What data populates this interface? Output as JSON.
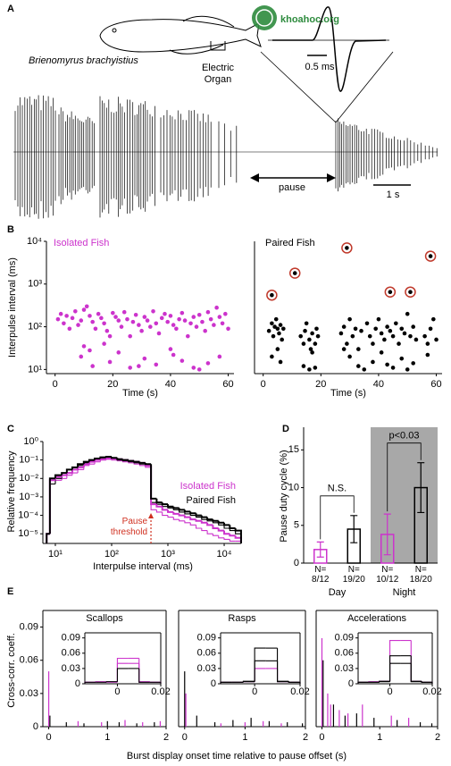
{
  "panels": [
    "A",
    "B",
    "C",
    "D",
    "E"
  ],
  "watermark": "khoahoc.org",
  "illustration": {
    "species": "Brienomyrus brachyistius",
    "organ_label": "Electric\nOrgan",
    "waveform_scale": "0.5 ms",
    "pause_label": "pause",
    "time_scale": "1 s"
  },
  "chart_data": [
    {
      "type": "scatter",
      "title": "Isolated Fish",
      "title_color": "#cc33cc",
      "xlabel": "Time (s)",
      "ylabel": "Interpulse interval (ms)",
      "xlim": [
        -3,
        62
      ],
      "ylim": [
        8,
        10000
      ],
      "yscale": "log",
      "xticks": [
        0,
        20,
        40,
        60
      ],
      "yticks": [
        {
          "value": 10,
          "label": "10¹"
        },
        {
          "value": 100,
          "label": "10²"
        },
        {
          "value": 1000,
          "label": "10³"
        },
        {
          "value": 10000,
          "label": "10⁴"
        }
      ],
      "series": [
        {
          "color": "#cc33cc",
          "x": [
            1,
            2,
            3,
            4,
            5,
            6,
            7,
            8,
            9,
            10,
            11,
            12,
            13,
            14,
            15,
            16,
            17,
            18,
            19,
            20,
            21,
            22,
            23,
            24,
            25,
            26,
            27,
            28,
            29,
            30,
            31,
            32,
            33,
            34,
            35,
            36,
            37,
            38,
            39,
            40,
            41,
            42,
            43,
            44,
            45,
            46,
            47,
            48,
            49,
            50,
            51,
            52,
            53,
            54,
            55,
            56,
            57,
            58,
            59,
            60,
            9,
            13,
            19,
            22,
            26,
            31,
            35,
            41,
            44,
            48,
            53,
            57,
            10,
            12,
            40,
            17,
            29,
            50
          ],
          "values": [
            150,
            200,
            120,
            180,
            90,
            160,
            230,
            110,
            140,
            250,
            300,
            180,
            130,
            90,
            200,
            160,
            120,
            80,
            60,
            210,
            170,
            140,
            100,
            220,
            150,
            60,
            130,
            190,
            110,
            80,
            170,
            140,
            100,
            230,
            120,
            70,
            160,
            200,
            130,
            180,
            110,
            90,
            150,
            210,
            140,
            60,
            120,
            170,
            100,
            190,
            130,
            80,
            220,
            150,
            110,
            280,
            170,
            120,
            200,
            90,
            20,
            12,
            15,
            25,
            11,
            18,
            13,
            22,
            16,
            11,
            14,
            20,
            35,
            28,
            30,
            40,
            12,
            10
          ]
        }
      ]
    },
    {
      "type": "scatter",
      "title": "Paired Fish",
      "title_color": "#000000",
      "xlabel": "Time (s)",
      "xlim": [
        -3,
        62
      ],
      "ylim": [
        8,
        10000
      ],
      "yscale": "log",
      "xticks": [
        0,
        20,
        40,
        60
      ],
      "series": [
        {
          "color": "#000000",
          "x": [
            2,
            3,
            3.5,
            4,
            4.5,
            5,
            5.5,
            6,
            6.5,
            7,
            3,
            5,
            6,
            13,
            14,
            14.5,
            15,
            16,
            16.5,
            17,
            18,
            18.5,
            19,
            14,
            16,
            17,
            18,
            27,
            28,
            29,
            30,
            31,
            32,
            33,
            34,
            36,
            37,
            38,
            39,
            40,
            41,
            42,
            43,
            44,
            45,
            46,
            47,
            48,
            49,
            50,
            51,
            52,
            53,
            56,
            57,
            58,
            59,
            60,
            30,
            33,
            38,
            41,
            45,
            48,
            52,
            57,
            28,
            35,
            43,
            50
          ],
          "values": [
            80,
            120,
            60,
            100,
            150,
            90,
            70,
            110,
            50,
            90,
            20,
            30,
            15,
            60,
            40,
            80,
            120,
            50,
            30,
            70,
            40,
            90,
            60,
            12,
            10,
            25,
            11,
            70,
            100,
            40,
            150,
            60,
            90,
            30,
            80,
            120,
            60,
            40,
            90,
            150,
            70,
            50,
            100,
            80,
            60,
            120,
            40,
            90,
            70,
            200,
            60,
            100,
            50,
            60,
            40,
            90,
            150,
            50,
            20,
            12,
            15,
            25,
            11,
            18,
            14,
            22,
            30,
            10,
            13,
            10
          ]
        },
        {
          "color": "#000000",
          "ring_color": "#c0392b",
          "x": [
            3,
            11,
            29,
            44,
            51,
            58
          ],
          "values": [
            550,
            1800,
            7000,
            650,
            650,
            4500
          ]
        }
      ]
    },
    {
      "type": "histogram",
      "xlabel": "Interpulse interval (ms)",
      "ylabel": "Relative frequency",
      "legend": "right",
      "xlim": [
        6,
        20000
      ],
      "ylim": [
        3e-06,
        1
      ],
      "xscale": "log",
      "yscale": "log",
      "xticks": [
        {
          "value": 10,
          "label": "10¹"
        },
        {
          "value": 100,
          "label": "10²"
        },
        {
          "value": 1000,
          "label": "10³"
        },
        {
          "value": 10000,
          "label": "10⁴"
        }
      ],
      "yticks": [
        {
          "value": 1e-05,
          "label": "10⁻⁵"
        },
        {
          "value": 0.0001,
          "label": "10⁻⁴"
        },
        {
          "value": 0.001,
          "label": "10⁻³"
        },
        {
          "value": 0.01,
          "label": "10⁻²"
        },
        {
          "value": 0.1,
          "label": "10⁻¹"
        },
        {
          "value": 1,
          "label": "10⁰"
        }
      ],
      "bins": [
        7,
        8,
        10,
        13,
        16,
        20,
        25,
        32,
        40,
        50,
        63,
        80,
        100,
        126,
        158,
        200,
        251,
        316,
        398,
        501,
        631,
        794,
        1000,
        1259,
        1585,
        1995,
        2512,
        3162,
        3981,
        5012,
        6310,
        7943,
        10000,
        12589,
        15849,
        19953
      ],
      "series": [
        {
          "color": "#cc33cc",
          "values": [
            1e-05,
            0.005,
            0.008,
            0.01,
            0.015,
            0.02,
            0.03,
            0.05,
            0.06,
            0.08,
            0.1,
            0.11,
            0.1,
            0.09,
            0.08,
            0.07,
            0.06,
            0.05,
            0.04,
            0.0002,
            0.00015,
            0.0001,
            8e-05,
            6e-05,
            5e-05,
            4e-05,
            3e-05,
            2e-05,
            1.5e-05,
            1e-05,
            8e-06,
            6e-06,
            5e-06,
            4e-06,
            4e-06
          ]
        },
        {
          "color": "#000000",
          "values": [
            1e-05,
            0.005,
            0.01,
            0.015,
            0.02,
            0.03,
            0.05,
            0.07,
            0.09,
            0.1,
            0.12,
            0.13,
            0.12,
            0.1,
            0.09,
            0.08,
            0.07,
            0.06,
            0.05,
            0.0005,
            0.0004,
            0.0003,
            0.00025,
            0.0002,
            0.00015,
            0.00012,
            0.0001,
            8e-05,
            6e-05,
            5e-05,
            4e-05,
            3e-05,
            2e-05,
            1.5e-05,
            1e-05
          ]
        },
        {
          "name": "Isolated Fish",
          "color": "#cc33cc",
          "values": [
            1e-05,
            0.008,
            0.012,
            0.015,
            0.02,
            0.03,
            0.04,
            0.06,
            0.08,
            0.1,
            0.11,
            0.12,
            0.12,
            0.11,
            0.1,
            0.09,
            0.08,
            0.07,
            0.05,
            0.0004,
            0.0003,
            0.0002,
            0.00015,
            0.00012,
            0.0001,
            8e-05,
            6e-05,
            5e-05,
            4e-05,
            3e-05,
            2e-05,
            1.5e-05,
            1e-05,
            8e-06,
            6e-06
          ]
        },
        {
          "name": "Paired Fish",
          "color": "#000000",
          "values": [
            1e-05,
            0.01,
            0.015,
            0.02,
            0.03,
            0.04,
            0.06,
            0.08,
            0.1,
            0.12,
            0.14,
            0.15,
            0.13,
            0.11,
            0.1,
            0.09,
            0.08,
            0.07,
            0.06,
            0.0008,
            0.0005,
            0.0004,
            0.0003,
            0.00025,
            0.0002,
            0.00016,
            0.00013,
            0.0001,
            8e-05,
            6e-05,
            5e-05,
            4e-05,
            3e-05,
            2e-05,
            1.5e-05
          ]
        }
      ],
      "annotations": [
        {
          "text": "Pause\nthreshold",
          "x": 500,
          "color": "#d03020"
        }
      ]
    },
    {
      "type": "bar",
      "ylabel": "Pause duty cycle (%)",
      "ylim": [
        0,
        18
      ],
      "yticks": [
        0,
        5,
        10,
        15
      ],
      "categories": [
        "N=\n8/12",
        "N=\n19/20",
        "N=\n10/12",
        "N=\n18/20"
      ],
      "values": [
        1.8,
        4.5,
        3.8,
        10
      ],
      "errors": [
        1.0,
        1.8,
        2.7,
        3.3
      ],
      "colors": [
        "#cc33cc",
        "#000000",
        "#cc33cc",
        "#000000"
      ],
      "group_labels": [
        "Day",
        "Night"
      ],
      "group_colors": [
        "#ffffff",
        "#a8a8a8"
      ],
      "comparisons": [
        "N.S.",
        "p<0.03"
      ]
    },
    {
      "type": "stem",
      "title": "Scallops",
      "ylabel": "Cross-corr. coeff.",
      "xlabel": "Burst display onset time relative to pause offset (s)",
      "xlim": [
        -0.1,
        2
      ],
      "ylim": [
        0,
        0.105
      ],
      "xticks": [
        0,
        1,
        2
      ],
      "yticks": [
        0,
        0.03,
        0.06,
        0.09
      ],
      "series": [
        {
          "color": "#cc33cc",
          "x": [
            0,
            0.5,
            0.9,
            1.3,
            1.6,
            1.9
          ],
          "values": [
            0.05,
            0.005,
            0.004,
            0.006,
            0.004,
            0.005
          ]
        },
        {
          "color": "#000000",
          "x": [
            0.02,
            0.3,
            0.6,
            1.0,
            1.2,
            1.5,
            1.8
          ],
          "values": [
            0.01,
            0.004,
            0.003,
            0.005,
            0.004,
            0.003,
            0.004
          ]
        }
      ],
      "inset": {
        "type": "histogram",
        "xlim": [
          -0.015,
          0.02
        ],
        "ylim": [
          0,
          0.1
        ],
        "xticks": [
          0,
          0.02
        ],
        "yticks": [
          0,
          0.03,
          0.06,
          0.09
        ],
        "bins": [
          -0.015,
          -0.01,
          -0.005,
          0,
          0.005,
          0.01,
          0.015,
          0.02
        ],
        "series": [
          {
            "color": "#cc33cc",
            "values": [
              0.003,
              0.004,
              0.004,
              0.05,
              0.05,
              0.004,
              0.003
            ]
          },
          {
            "color": "#cc33cc",
            "values": [
              0.003,
              0.003,
              0.003,
              0.04,
              0.04,
              0.003,
              0.003
            ]
          },
          {
            "color": "#000000",
            "values": [
              0.003,
              0.003,
              0.004,
              0.03,
              0.03,
              0.003,
              0.003
            ]
          }
        ]
      }
    },
    {
      "type": "stem",
      "title": "Rasps",
      "xlim": [
        -0.1,
        2
      ],
      "ylim": [
        0,
        0.105
      ],
      "xticks": [
        0,
        1,
        2
      ],
      "series": [
        {
          "color": "#cc33cc",
          "x": [
            0.02,
            0.6,
            1.0,
            1.3,
            1.6
          ],
          "values": [
            0.03,
            0.003,
            0.004,
            0.005,
            0.003
          ]
        },
        {
          "color": "#000000",
          "x": [
            0,
            0.2,
            0.5,
            0.8,
            1.1,
            1.4,
            1.7,
            1.95
          ],
          "values": [
            0.05,
            0.01,
            0.004,
            0.006,
            0.008,
            0.005,
            0.004,
            0.003
          ]
        }
      ],
      "inset": {
        "type": "histogram",
        "xlim": [
          -0.015,
          0.02
        ],
        "ylim": [
          0,
          0.1
        ],
        "xticks": [
          0,
          0.02
        ],
        "yticks": [
          0,
          0.03,
          0.06,
          0.09
        ],
        "bins": [
          -0.015,
          -0.01,
          -0.005,
          0,
          0.005,
          0.01,
          0.015,
          0.02
        ],
        "series": [
          {
            "color": "#cc33cc",
            "values": [
              0.003,
              0.003,
              0.004,
              0.03,
              0.03,
              0.004,
              0.003
            ]
          },
          {
            "color": "#000000",
            "values": [
              0.003,
              0.003,
              0.005,
              0.07,
              0.07,
              0.005,
              0.003
            ]
          },
          {
            "color": "#000000",
            "values": [
              0.003,
              0.003,
              0.004,
              0.045,
              0.045,
              0.004,
              0.003
            ]
          }
        ]
      }
    },
    {
      "type": "stem",
      "title": "Accelerations",
      "xlim": [
        -0.1,
        2
      ],
      "ylim": [
        0,
        0.105
      ],
      "xticks": [
        0,
        1,
        2
      ],
      "series": [
        {
          "color": "#cc33cc",
          "x": [
            0,
            0.1,
            0.15,
            0.3,
            0.45,
            0.7,
            1.2,
            1.5
          ],
          "values": [
            0.08,
            0.03,
            0.02,
            0.015,
            0.012,
            0.02,
            0.01,
            0.008
          ]
        },
        {
          "color": "#000000",
          "x": [
            0.02,
            0.2,
            0.4,
            0.6,
            0.9,
            1.3,
            1.7,
            1.9
          ],
          "values": [
            0.06,
            0.02,
            0.01,
            0.012,
            0.008,
            0.006,
            0.004,
            0.003
          ]
        }
      ],
      "inset": {
        "type": "histogram",
        "xlim": [
          -0.015,
          0.02
        ],
        "ylim": [
          0,
          0.1
        ],
        "xticks": [
          0,
          0.02
        ],
        "yticks": [
          0,
          0.03,
          0.06,
          0.09
        ],
        "bins": [
          -0.015,
          -0.01,
          -0.005,
          0,
          0.005,
          0.01,
          0.015,
          0.02
        ],
        "series": [
          {
            "color": "#cc33cc",
            "values": [
              0.003,
              0.004,
              0.005,
              0.085,
              0.085,
              0.005,
              0.003
            ]
          },
          {
            "color": "#000000",
            "values": [
              0.003,
              0.003,
              0.005,
              0.055,
              0.055,
              0.005,
              0.003
            ]
          },
          {
            "color": "#000000",
            "values": [
              0.003,
              0.003,
              0.004,
              0.04,
              0.04,
              0.004,
              0.003
            ]
          }
        ]
      }
    }
  ]
}
